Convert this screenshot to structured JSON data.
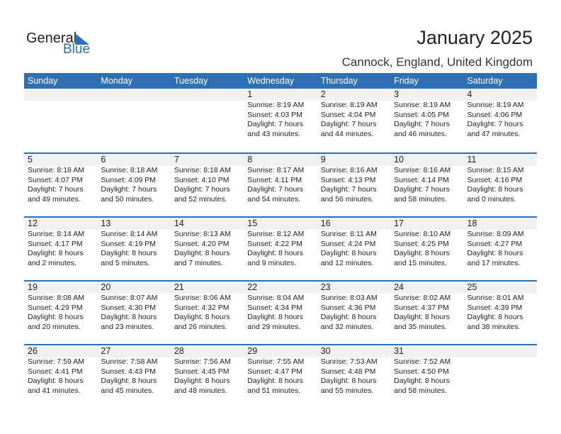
{
  "logo": {
    "word1": "General",
    "word2": "Blue",
    "accent": "#2e70b3"
  },
  "title": "January 2025",
  "location": "Cannock, England, United Kingdom",
  "colors": {
    "header_bg": "#2e70b3",
    "band_bg": "#f1f1f1"
  },
  "days": [
    "Sunday",
    "Monday",
    "Tuesday",
    "Wednesday",
    "Thursday",
    "Friday",
    "Saturday"
  ],
  "weeks": [
    [
      null,
      null,
      null,
      {
        "date": "1",
        "sunrise": "Sunrise: 8:19 AM",
        "sunset": "Sunset: 4:03 PM",
        "daylight": "Daylight: 7 hours",
        "minutes": "and 43 minutes."
      },
      {
        "date": "2",
        "sunrise": "Sunrise: 8:19 AM",
        "sunset": "Sunset: 4:04 PM",
        "daylight": "Daylight: 7 hours",
        "minutes": "and 44 minutes."
      },
      {
        "date": "3",
        "sunrise": "Sunrise: 8:19 AM",
        "sunset": "Sunset: 4:05 PM",
        "daylight": "Daylight: 7 hours",
        "minutes": "and 46 minutes."
      },
      {
        "date": "4",
        "sunrise": "Sunrise: 8:19 AM",
        "sunset": "Sunset: 4:06 PM",
        "daylight": "Daylight: 7 hours",
        "minutes": "and 47 minutes."
      }
    ],
    [
      {
        "date": "5",
        "sunrise": "Sunrise: 8:18 AM",
        "sunset": "Sunset: 4:07 PM",
        "daylight": "Daylight: 7 hours",
        "minutes": "and 49 minutes."
      },
      {
        "date": "6",
        "sunrise": "Sunrise: 8:18 AM",
        "sunset": "Sunset: 4:09 PM",
        "daylight": "Daylight: 7 hours",
        "minutes": "and 50 minutes."
      },
      {
        "date": "7",
        "sunrise": "Sunrise: 8:18 AM",
        "sunset": "Sunset: 4:10 PM",
        "daylight": "Daylight: 7 hours",
        "minutes": "and 52 minutes."
      },
      {
        "date": "8",
        "sunrise": "Sunrise: 8:17 AM",
        "sunset": "Sunset: 4:11 PM",
        "daylight": "Daylight: 7 hours",
        "minutes": "and 54 minutes."
      },
      {
        "date": "9",
        "sunrise": "Sunrise: 8:16 AM",
        "sunset": "Sunset: 4:13 PM",
        "daylight": "Daylight: 7 hours",
        "minutes": "and 56 minutes."
      },
      {
        "date": "10",
        "sunrise": "Sunrise: 8:16 AM",
        "sunset": "Sunset: 4:14 PM",
        "daylight": "Daylight: 7 hours",
        "minutes": "and 58 minutes."
      },
      {
        "date": "11",
        "sunrise": "Sunrise: 8:15 AM",
        "sunset": "Sunset: 4:16 PM",
        "daylight": "Daylight: 8 hours",
        "minutes": "and 0 minutes."
      }
    ],
    [
      {
        "date": "12",
        "sunrise": "Sunrise: 8:14 AM",
        "sunset": "Sunset: 4:17 PM",
        "daylight": "Daylight: 8 hours",
        "minutes": "and 2 minutes."
      },
      {
        "date": "13",
        "sunrise": "Sunrise: 8:14 AM",
        "sunset": "Sunset: 4:19 PM",
        "daylight": "Daylight: 8 hours",
        "minutes": "and 5 minutes."
      },
      {
        "date": "14",
        "sunrise": "Sunrise: 8:13 AM",
        "sunset": "Sunset: 4:20 PM",
        "daylight": "Daylight: 8 hours",
        "minutes": "and 7 minutes."
      },
      {
        "date": "15",
        "sunrise": "Sunrise: 8:12 AM",
        "sunset": "Sunset: 4:22 PM",
        "daylight": "Daylight: 8 hours",
        "minutes": "and 9 minutes."
      },
      {
        "date": "16",
        "sunrise": "Sunrise: 8:11 AM",
        "sunset": "Sunset: 4:24 PM",
        "daylight": "Daylight: 8 hours",
        "minutes": "and 12 minutes."
      },
      {
        "date": "17",
        "sunrise": "Sunrise: 8:10 AM",
        "sunset": "Sunset: 4:25 PM",
        "daylight": "Daylight: 8 hours",
        "minutes": "and 15 minutes."
      },
      {
        "date": "18",
        "sunrise": "Sunrise: 8:09 AM",
        "sunset": "Sunset: 4:27 PM",
        "daylight": "Daylight: 8 hours",
        "minutes": "and 17 minutes."
      }
    ],
    [
      {
        "date": "19",
        "sunrise": "Sunrise: 8:08 AM",
        "sunset": "Sunset: 4:29 PM",
        "daylight": "Daylight: 8 hours",
        "minutes": "and 20 minutes."
      },
      {
        "date": "20",
        "sunrise": "Sunrise: 8:07 AM",
        "sunset": "Sunset: 4:30 PM",
        "daylight": "Daylight: 8 hours",
        "minutes": "and 23 minutes."
      },
      {
        "date": "21",
        "sunrise": "Sunrise: 8:06 AM",
        "sunset": "Sunset: 4:32 PM",
        "daylight": "Daylight: 8 hours",
        "minutes": "and 26 minutes."
      },
      {
        "date": "22",
        "sunrise": "Sunrise: 8:04 AM",
        "sunset": "Sunset: 4:34 PM",
        "daylight": "Daylight: 8 hours",
        "minutes": "and 29 minutes."
      },
      {
        "date": "23",
        "sunrise": "Sunrise: 8:03 AM",
        "sunset": "Sunset: 4:36 PM",
        "daylight": "Daylight: 8 hours",
        "minutes": "and 32 minutes."
      },
      {
        "date": "24",
        "sunrise": "Sunrise: 8:02 AM",
        "sunset": "Sunset: 4:37 PM",
        "daylight": "Daylight: 8 hours",
        "minutes": "and 35 minutes."
      },
      {
        "date": "25",
        "sunrise": "Sunrise: 8:01 AM",
        "sunset": "Sunset: 4:39 PM",
        "daylight": "Daylight: 8 hours",
        "minutes": "and 38 minutes."
      }
    ],
    [
      {
        "date": "26",
        "sunrise": "Sunrise: 7:59 AM",
        "sunset": "Sunset: 4:41 PM",
        "daylight": "Daylight: 8 hours",
        "minutes": "and 41 minutes."
      },
      {
        "date": "27",
        "sunrise": "Sunrise: 7:58 AM",
        "sunset": "Sunset: 4:43 PM",
        "daylight": "Daylight: 8 hours",
        "minutes": "and 45 minutes."
      },
      {
        "date": "28",
        "sunrise": "Sunrise: 7:56 AM",
        "sunset": "Sunset: 4:45 PM",
        "daylight": "Daylight: 8 hours",
        "minutes": "and 48 minutes."
      },
      {
        "date": "29",
        "sunrise": "Sunrise: 7:55 AM",
        "sunset": "Sunset: 4:47 PM",
        "daylight": "Daylight: 8 hours",
        "minutes": "and 51 minutes."
      },
      {
        "date": "30",
        "sunrise": "Sunrise: 7:53 AM",
        "sunset": "Sunset: 4:48 PM",
        "daylight": "Daylight: 8 hours",
        "minutes": "and 55 minutes."
      },
      {
        "date": "31",
        "sunrise": "Sunrise: 7:52 AM",
        "sunset": "Sunset: 4:50 PM",
        "daylight": "Daylight: 8 hours",
        "minutes": "and 58 minutes."
      },
      null
    ]
  ]
}
